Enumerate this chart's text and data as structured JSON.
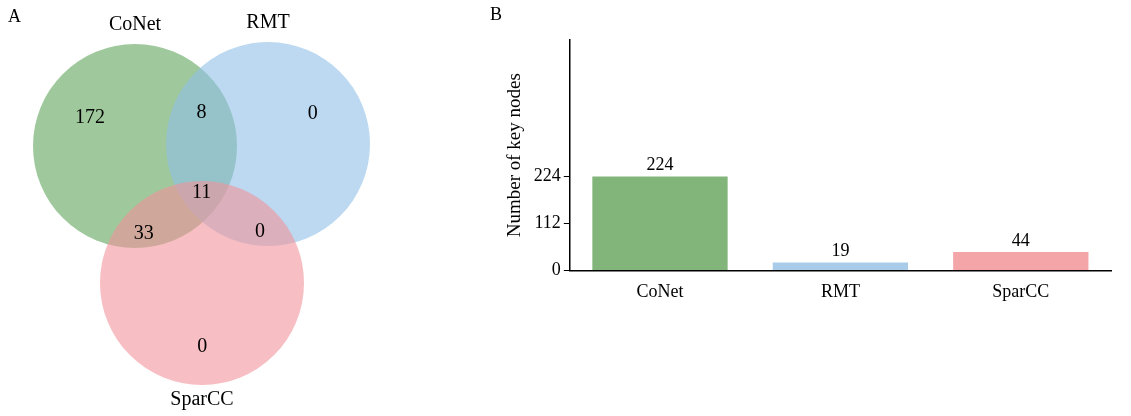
{
  "chart_data": [
    {
      "type": "other",
      "title": "A",
      "categories": [
        "CoNet",
        "RMT",
        "SparCC"
      ],
      "colors": [
        "#5fa55a",
        "#8fbfe8",
        "#f2939b"
      ],
      "annotations": [
        "172",
        "8",
        "0",
        "11",
        "33",
        "0",
        "0"
      ]
    },
    {
      "type": "bar",
      "title": "B",
      "ylabel": "Number of key nodes",
      "categories": [
        "CoNet",
        "RMT",
        "SparCC"
      ],
      "values": [
        224,
        19,
        44
      ],
      "colors": [
        "#82b57a",
        "#a9cbea",
        "#f4a5a8"
      ],
      "ylim": [
        0,
        550
      ],
      "yticks": [
        0,
        112,
        224
      ],
      "data_labels": true,
      "grid": false,
      "legend": false
    }
  ]
}
